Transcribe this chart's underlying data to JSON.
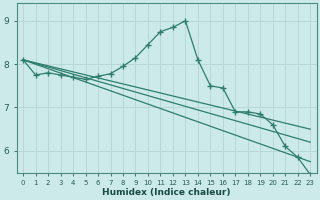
{
  "title": "",
  "xlabel": "Humidex (Indice chaleur)",
  "ylabel": "",
  "background_color": "#cceaea",
  "line_color": "#2e7d6e",
  "grid_color": "#b8d8d8",
  "xlim": [
    -0.5,
    23.5
  ],
  "ylim": [
    5.5,
    9.4
  ],
  "yticks": [
    6,
    7,
    8,
    9
  ],
  "xticks": [
    0,
    1,
    2,
    3,
    4,
    5,
    6,
    7,
    8,
    9,
    10,
    11,
    12,
    13,
    14,
    15,
    16,
    17,
    18,
    19,
    20,
    21,
    22,
    23
  ],
  "main_line": {
    "x": [
      0,
      1,
      2,
      3,
      4,
      5,
      6,
      7,
      8,
      9,
      10,
      11,
      12,
      13,
      14,
      15,
      16,
      17,
      18,
      19,
      20,
      21,
      22,
      23
    ],
    "y": [
      8.1,
      7.75,
      7.8,
      7.75,
      7.7,
      7.65,
      7.72,
      7.78,
      7.95,
      8.15,
      8.45,
      8.75,
      8.85,
      9.0,
      8.1,
      7.5,
      7.45,
      6.9,
      6.9,
      6.85,
      6.6,
      6.1,
      5.85,
      5.45
    ]
  },
  "straight_lines": [
    {
      "x": [
        0,
        23
      ],
      "y": [
        8.1,
        6.5
      ]
    },
    {
      "x": [
        0,
        23
      ],
      "y": [
        8.1,
        6.2
      ]
    },
    {
      "x": [
        0,
        23
      ],
      "y": [
        8.1,
        5.75
      ]
    }
  ]
}
